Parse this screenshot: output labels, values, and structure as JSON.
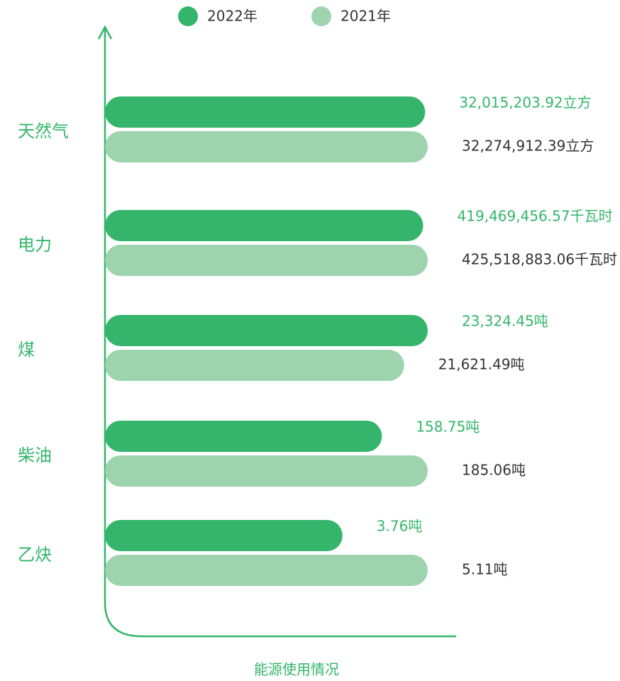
{
  "chart_data": {
    "type": "bar",
    "xlabel": "能源使用情况",
    "categories": [
      "天然气",
      "电力",
      "煤",
      "柴油",
      "乙炔"
    ],
    "series": [
      {
        "name": "2022年",
        "color": "#34b56b",
        "values": [
          32015203.92,
          419469456.57,
          23324.45,
          158.75,
          3.76
        ],
        "value_labels": [
          "32,015,203.92立方",
          "419,469,456.57千瓦时",
          "23,324.45吨",
          "158.75吨",
          "3.76吨"
        ]
      },
      {
        "name": "2021年",
        "color": "#9dd4ae",
        "values": [
          32274912.39,
          425518883.06,
          21621.49,
          185.06,
          5.11
        ],
        "value_labels": [
          "32,274,912.39立方",
          "425,518,883.06千瓦时",
          "21,621.49吨",
          "185.06吨",
          "5.11吨"
        ]
      }
    ]
  }
}
